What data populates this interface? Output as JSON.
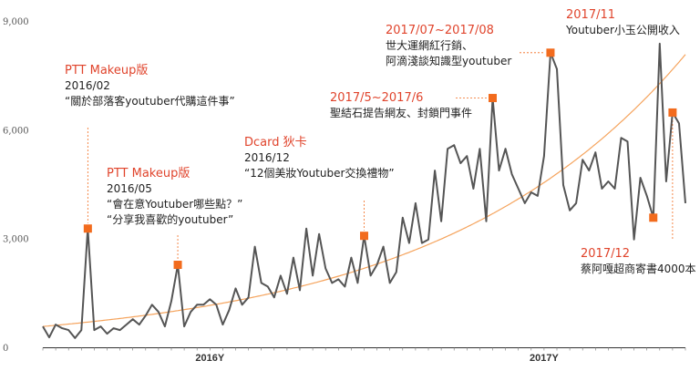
{
  "chart_data": {
    "type": "line",
    "ylim": [
      0,
      9000
    ],
    "y_ticks": [
      0,
      3000,
      6000,
      9000
    ],
    "y_tick_labels": [
      "0",
      "3,000",
      "6,000",
      "9,000"
    ],
    "x_labels": [
      {
        "index": 26,
        "label": "2016Y"
      },
      {
        "index": 78,
        "label": "2017Y"
      }
    ],
    "series": [
      {
        "values": [
          600,
          300,
          650,
          550,
          500,
          280,
          500,
          3300,
          500,
          600,
          400,
          550,
          500,
          650,
          800,
          650,
          900,
          1200,
          1000,
          600,
          1300,
          2300,
          600,
          1000,
          1200,
          1200,
          1350,
          1200,
          650,
          1050,
          1650,
          1200,
          1400,
          2800,
          1800,
          1700,
          1400,
          2000,
          1500,
          2500,
          1600,
          3300,
          2000,
          3150,
          2200,
          1800,
          1900,
          1700,
          2500,
          1800,
          3100,
          2000,
          2300,
          2800,
          1800,
          2100,
          3600,
          2900,
          4000,
          2900,
          3000,
          4900,
          3500,
          5500,
          5600,
          5100,
          5300,
          4400,
          5500,
          3500,
          6900,
          4900,
          5500,
          4800,
          4400,
          4000,
          4300,
          4200,
          5300,
          8150,
          7700,
          4500,
          3800,
          4000,
          5200,
          4900,
          5400,
          4400,
          4600,
          4400,
          5800,
          5700,
          3000,
          4700,
          4200,
          3600,
          8400,
          4600,
          6500,
          6200,
          4000
        ],
        "highlight_points": [
          7,
          21,
          50,
          70,
          79,
          95,
          98
        ]
      },
      {
        "type": "trend",
        "start": 600,
        "end": 8100
      }
    ],
    "annotations": [
      {
        "title": "PTT Makeup版",
        "lines": [
          "2016/02",
          "“關於部落客youtuber代購這件事”"
        ]
      },
      {
        "title": "PTT Makeup版",
        "lines": [
          "2016/05",
          "“會在意Youtuber哪些點？”",
          "“分享我喜歡的youtuber”"
        ]
      },
      {
        "title": "Dcard 狄卡",
        "lines": [
          "2016/12",
          "“12個美妝Youtuber交換禮物”"
        ]
      },
      {
        "title": "2017/5~2017/6",
        "lines": [
          "聖結石提告網友、封鎖門事件"
        ]
      },
      {
        "title": "2017/07~2017/08",
        "lines": [
          "世大運網紅行銷、",
          "阿滴淺談知識型youtuber"
        ]
      },
      {
        "title": "2017/11",
        "lines": [
          "Youtuber小玉公開收入"
        ]
      },
      {
        "title": "2017/12",
        "lines": [
          "蔡阿嘎超商寄書4000本"
        ]
      }
    ],
    "colors": {
      "line": "#555555",
      "trend": "#f5a35c",
      "marker": "#f26b1d",
      "label": "#e0442c",
      "leader": "#f26b1d"
    }
  }
}
